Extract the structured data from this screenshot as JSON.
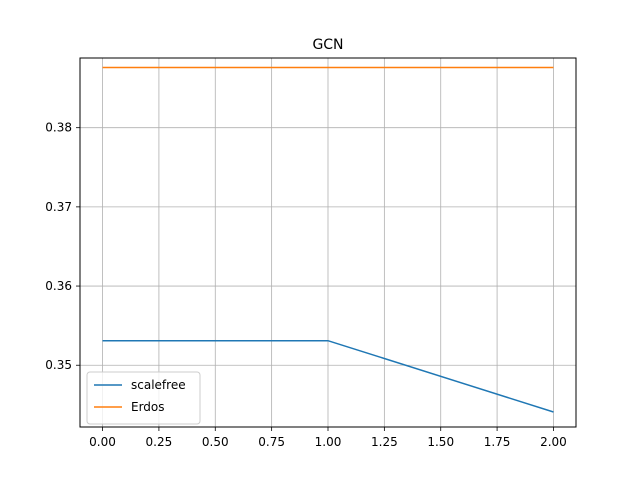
{
  "chart_data": {
    "type": "line",
    "title": "GCN",
    "xlabel": "",
    "ylabel": "",
    "xlim": [
      -0.1,
      2.1
    ],
    "ylim": [
      0.3422,
      0.3888
    ],
    "xticks": [
      0.0,
      0.25,
      0.5,
      0.75,
      1.0,
      1.25,
      1.5,
      1.75,
      2.0
    ],
    "xtick_labels": [
      "0.00",
      "0.25",
      "0.50",
      "0.75",
      "1.00",
      "1.25",
      "1.50",
      "1.75",
      "2.00"
    ],
    "yticks": [
      0.35,
      0.36,
      0.37,
      0.38
    ],
    "ytick_labels": [
      "0.35",
      "0.36",
      "0.37",
      "0.38"
    ],
    "grid": true,
    "legend_position": "lower-left",
    "x": [
      0,
      1,
      2
    ],
    "series": [
      {
        "name": "scalefree",
        "color": "#1f77b4",
        "values": [
          0.3531,
          0.3531,
          0.3441
        ]
      },
      {
        "name": "Erdos",
        "color": "#ff7f0e",
        "values": [
          0.3876,
          0.3876,
          0.3876
        ]
      }
    ]
  }
}
